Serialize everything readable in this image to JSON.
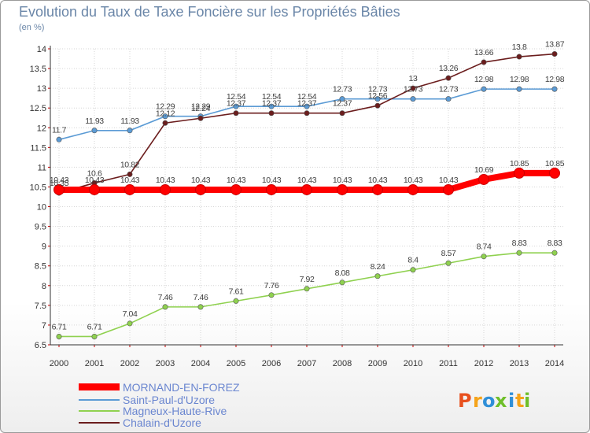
{
  "chart_data": {
    "type": "line",
    "title": "Evolution du Taux de Taxe Foncière sur les Propriétés Bâties",
    "ylabel": "(en %)",
    "xlabel": "",
    "x": [
      "2000",
      "2001",
      "2002",
      "2003",
      "2004",
      "2005",
      "2006",
      "2007",
      "2008",
      "2009",
      "2010",
      "2011",
      "2012",
      "2013",
      "2014"
    ],
    "ylim": [
      6.5,
      14
    ],
    "yticks": [
      "6.5",
      "7",
      "7.5",
      "8",
      "8.5",
      "9",
      "9.5",
      "10",
      "10.5",
      "11",
      "11.5",
      "12",
      "12.5",
      "13",
      "13.5",
      "14"
    ],
    "grid": true,
    "legend_position": "bottom-left",
    "series": [
      {
        "name": "MORNAND-EN-FOREZ",
        "color": "#ff0000",
        "values": [
          10.43,
          10.43,
          10.43,
          10.43,
          10.43,
          10.43,
          10.43,
          10.43,
          10.43,
          10.43,
          10.43,
          10.43,
          10.69,
          10.85,
          10.85
        ]
      },
      {
        "name": "Saint-Paul-d'Uzore",
        "color": "#5b9bd5",
        "values": [
          11.7,
          11.93,
          11.93,
          12.29,
          12.29,
          12.54,
          12.54,
          12.54,
          12.73,
          12.73,
          12.73,
          12.73,
          12.98,
          12.98,
          12.98
        ]
      },
      {
        "name": "Magneux-Haute-Rive",
        "color": "#8fd14f",
        "values": [
          6.71,
          6.71,
          7.04,
          7.46,
          7.46,
          7.61,
          7.76,
          7.92,
          8.08,
          8.24,
          8.4,
          8.57,
          8.74,
          8.83,
          8.83
        ]
      },
      {
        "name": "Chalain-d'Uzore",
        "color": "#6b1d1d",
        "values": [
          10.35,
          10.6,
          10.82,
          12.12,
          12.24,
          12.37,
          12.37,
          12.37,
          12.37,
          12.56,
          13,
          13.26,
          13.66,
          13.8,
          13.87
        ]
      }
    ],
    "data_labels": {
      "MORNAND-EN-FOREZ": [
        "10.43",
        "10.43",
        "10.43",
        "10.43",
        "10.43",
        "10.43",
        "10.43",
        "10.43",
        "10.43",
        "10.43",
        "10.43",
        "10.43",
        "10.69",
        "10.85",
        "10.85"
      ],
      "Saint-Paul-d'Uzore": [
        "11.7",
        "11.93",
        "11.93",
        "12.29",
        "12.29",
        "12.54",
        "12.54",
        "12.54",
        "12.73",
        "12.73",
        "12.73",
        "12.73",
        "12.98",
        "12.98",
        "12.98"
      ],
      "Magneux-Haute-Rive": [
        "6.71",
        "6.71",
        "7.04",
        "7.46",
        "7.46",
        "7.61",
        "7.76",
        "7.92",
        "8.08",
        "8.24",
        "8.4",
        "8.57",
        "8.74",
        "8.83",
        "8.83"
      ],
      "Chalain-d'Uzore": [
        "10.35",
        "10.6",
        "10.82",
        "12.12",
        "12.24",
        "12.37",
        "12.37",
        "12.37",
        "12.37",
        "12.56",
        "13",
        "13.26",
        "13.66",
        "13.8",
        "13.87"
      ]
    }
  },
  "logo": {
    "letters": [
      "P",
      "r",
      "o",
      "x",
      "i",
      "t",
      "i"
    ],
    "colors": [
      "#e8501e",
      "#f5a31a",
      "#2f8fd8",
      "#6fbf2a",
      "#2f8fd8",
      "#f5a31a",
      "#6fbf2a"
    ]
  }
}
